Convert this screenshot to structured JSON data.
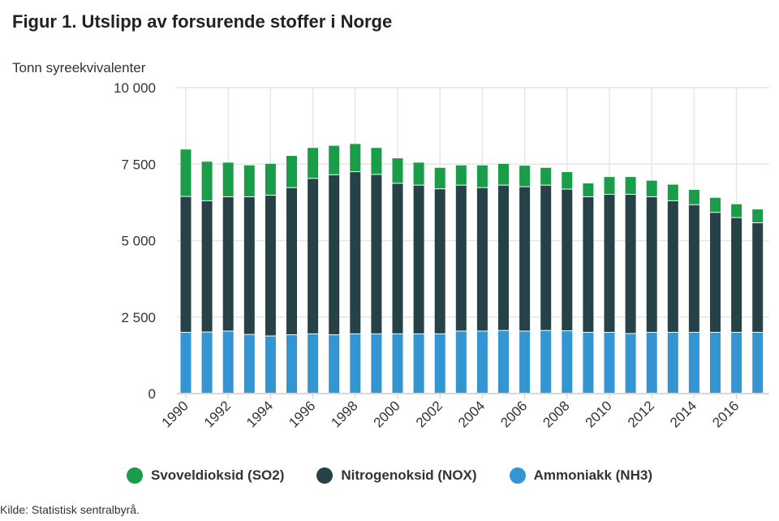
{
  "title": "Figur 1. Utslipp av forsurende stoffer i Norge",
  "source": "Kilde: Statistisk sentralbyrå.",
  "chart_data": {
    "type": "bar",
    "stacked": true,
    "title": "Figur 1. Utslipp av forsurende stoffer i Norge",
    "ylabel": "Tonn syreekvivalenter",
    "xlabel": "",
    "ylim": [
      0,
      10000
    ],
    "yticks": [
      0,
      2500,
      5000,
      7500,
      10000
    ],
    "ytick_labels": [
      "0",
      "2 500",
      "5 000",
      "7 500",
      "10 000"
    ],
    "xtick_labels": [
      "1990",
      "1992",
      "1994",
      "1996",
      "1998",
      "2000",
      "2002",
      "2004",
      "2006",
      "2008",
      "2010",
      "2012",
      "2014",
      "2016"
    ],
    "grid": true,
    "legend_position": "bottom",
    "categories": [
      "1990",
      "1991",
      "1992",
      "1993",
      "1994",
      "1995",
      "1996",
      "1997",
      "1998",
      "1999",
      "2000",
      "2001",
      "2002",
      "2003",
      "2004",
      "2005",
      "2006",
      "2007",
      "2008",
      "2009",
      "2010",
      "2011",
      "2012",
      "2013",
      "2014",
      "2015",
      "2016",
      "2017"
    ],
    "series": [
      {
        "name": "Ammoniakk (NH3)",
        "color": "#3396d3",
        "values": [
          1990,
          2000,
          2030,
          1920,
          1870,
          1910,
          1940,
          1910,
          1940,
          1940,
          1940,
          1940,
          1940,
          2030,
          2030,
          2050,
          2030,
          2050,
          2040,
          1990,
          1990,
          1950,
          1990,
          1990,
          1990,
          1990,
          1990,
          1990
        ]
      },
      {
        "name": "Nitrogenoksid (NOX)",
        "color": "#274247",
        "values": [
          4440,
          4290,
          4390,
          4500,
          4600,
          4810,
          5080,
          5230,
          5300,
          5210,
          4920,
          4860,
          4740,
          4770,
          4690,
          4750,
          4720,
          4750,
          4630,
          4430,
          4510,
          4550,
          4430,
          4300,
          4170,
          3920,
          3750,
          3580
        ]
      },
      {
        "name": "Svoveldioksid (SO2)",
        "color": "#1a9d49",
        "values": [
          1550,
          1290,
          1130,
          1040,
          1040,
          1050,
          1010,
          960,
          920,
          880,
          830,
          750,
          700,
          660,
          740,
          710,
          700,
          580,
          570,
          450,
          580,
          580,
          540,
          540,
          500,
          490,
          450,
          450
        ]
      }
    ],
    "legend_order": [
      2,
      1,
      0
    ]
  }
}
